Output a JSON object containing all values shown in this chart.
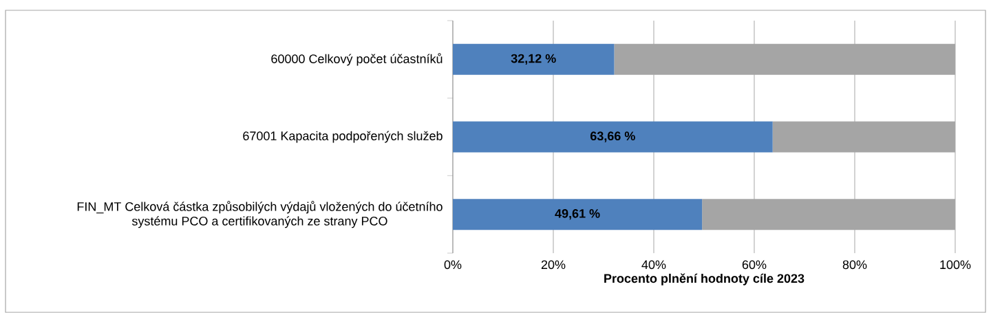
{
  "chart_data": {
    "type": "bar",
    "orientation": "horizontal",
    "stacked": true,
    "categories": [
      "60000 Celkový počet účastníků",
      "67001 Kapacita podpořených služeb",
      "FIN_MT Celková částka způsobilých výdajů vložených do účetního systému PCO a certifikovaných ze strany PCO"
    ],
    "series": [
      {
        "color": "#4f81bd",
        "values": [
          32.12,
          63.66,
          49.61
        ],
        "value_labels": [
          "32,12 %",
          "63,66 %",
          "49,61 %"
        ]
      },
      {
        "color": "#a5a5a5",
        "values": [
          67.88,
          36.34,
          50.39
        ]
      }
    ],
    "xlim": [
      0,
      100
    ],
    "xticks": [
      {
        "value": 0,
        "label": "0%"
      },
      {
        "value": 20,
        "label": "20%"
      },
      {
        "value": 40,
        "label": "40%"
      },
      {
        "value": 60,
        "label": "60%"
      },
      {
        "value": 80,
        "label": "80%"
      },
      {
        "value": 100,
        "label": "100%"
      }
    ],
    "xlabel": "Procento plnění hodnoty cíle 2023",
    "grid": "x"
  }
}
